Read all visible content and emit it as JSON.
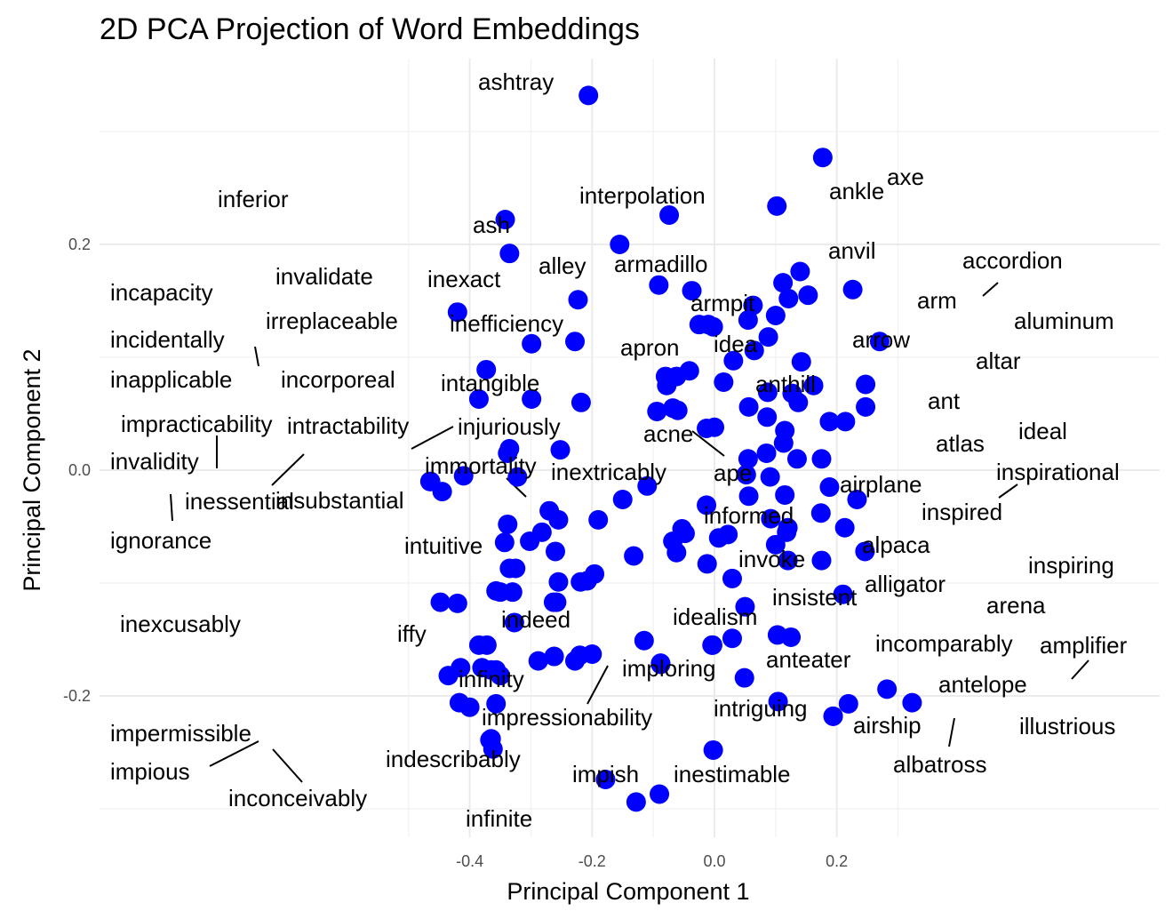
{
  "chart_data": {
    "type": "scatter",
    "title": "2D PCA Projection of Word Embeddings",
    "xlabel": "Principal Component 1",
    "ylabel": "Principal Component 2",
    "xlim": [
      -0.495,
      0.36
    ],
    "ylim": [
      -0.325,
      0.365
    ],
    "x_ticks": [
      -0.4,
      -0.2,
      0.0,
      0.2
    ],
    "x_tick_labels": [
      "-0.4",
      "-0.2",
      "0.0",
      "0.2"
    ],
    "y_ticks": [
      -0.2,
      0.0,
      0.2
    ],
    "y_tick_labels": [
      "-0.2",
      "0.0",
      "0.2"
    ],
    "grid": true,
    "point_color": "#0000ff",
    "labeled_points": [
      {
        "label": "ashtray",
        "x": -0.206,
        "y": 0.332
      },
      {
        "label": "axe",
        "x": 0.177,
        "y": 0.277
      },
      {
        "label": "ankle",
        "x": 0.102,
        "y": 0.234
      },
      {
        "label": "interpolation",
        "x": -0.074,
        "y": 0.226
      },
      {
        "label": "inferior",
        "x": -0.342,
        "y": 0.222
      },
      {
        "label": "ash",
        "x": -0.155,
        "y": 0.2
      },
      {
        "label": "invalidate",
        "x": -0.335,
        "y": 0.192
      },
      {
        "label": "anvil",
        "x": 0.14,
        "y": 0.176
      },
      {
        "label": "accordion",
        "x": 0.226,
        "y": 0.16
      },
      {
        "label": "alley",
        "x": -0.091,
        "y": 0.164
      },
      {
        "label": "armadillo",
        "x": -0.037,
        "y": 0.159
      },
      {
        "label": "arm",
        "x": 0.153,
        "y": 0.155
      },
      {
        "label": "inexact",
        "x": -0.223,
        "y": 0.151
      },
      {
        "label": "incapacity",
        "x": -0.42,
        "y": 0.14
      },
      {
        "label": "armpit",
        "x": 0.063,
        "y": 0.146
      },
      {
        "label": "irreplaceable",
        "x": -0.299,
        "y": 0.112
      },
      {
        "label": "inefficiency",
        "x": -0.228,
        "y": 0.114
      },
      {
        "label": "aluminum",
        "x": 0.27,
        "y": 0.114
      },
      {
        "label": "incidentally",
        "x": -0.373,
        "y": 0.089
      },
      {
        "label": "idea",
        "x": 0.031,
        "y": 0.097
      },
      {
        "label": "arrow",
        "x": 0.142,
        "y": 0.096
      },
      {
        "label": "apron",
        "x": -0.041,
        "y": 0.088
      },
      {
        "label": "altar",
        "x": 0.247,
        "y": 0.076
      },
      {
        "label": "inapplicable",
        "x": -0.385,
        "y": 0.063
      },
      {
        "label": "incorporeal",
        "x": -0.299,
        "y": 0.063
      },
      {
        "label": "anthill",
        "x": 0.087,
        "y": 0.069
      },
      {
        "label": "intangible",
        "x": -0.218,
        "y": 0.06
      },
      {
        "label": "ideal",
        "x": 0.247,
        "y": 0.056
      },
      {
        "label": "ant",
        "x": 0.214,
        "y": 0.043
      },
      {
        "label": "acne",
        "x": -0.013,
        "y": 0.037
      },
      {
        "label": "impracticability",
        "x": -0.41,
        "y": -0.005
      },
      {
        "label": "intractability",
        "x": -0.335,
        "y": 0.019
      },
      {
        "label": "injuriously",
        "x": -0.252,
        "y": 0.018
      },
      {
        "label": "atlas",
        "x": 0.175,
        "y": 0.01
      },
      {
        "label": "ape",
        "x": 0.0,
        "y": 0.038
      },
      {
        "label": "invalidity",
        "x": -0.464,
        "y": -0.01
      },
      {
        "label": "inessential",
        "x": -0.338,
        "y": 0.015
      },
      {
        "label": "insubstantial",
        "x": -0.322,
        "y": -0.006
      },
      {
        "label": "immortality",
        "x": -0.15,
        "y": -0.026
      },
      {
        "label": "inextricably",
        "x": -0.11,
        "y": -0.014
      },
      {
        "label": "inspirational",
        "x": 0.233,
        "y": -0.026
      },
      {
        "label": "airplane",
        "x": 0.188,
        "y": -0.015
      },
      {
        "label": "ignorance",
        "x": -0.445,
        "y": -0.019
      },
      {
        "label": "informed",
        "x": -0.013,
        "y": -0.031
      },
      {
        "label": "inspired",
        "x": 0.213,
        "y": -0.051
      },
      {
        "label": "alpaca",
        "x": 0.118,
        "y": -0.055
      },
      {
        "label": "intuitive",
        "x": -0.26,
        "y": -0.072
      },
      {
        "label": "invoke",
        "x": 0.029,
        "y": -0.096
      },
      {
        "label": "inspiring",
        "x": 0.246,
        "y": -0.072
      },
      {
        "label": "alligator",
        "x": 0.175,
        "y": -0.08
      },
      {
        "label": "arena",
        "x": 0.21,
        "y": -0.11
      },
      {
        "label": "insistent",
        "x": 0.05,
        "y": -0.121
      },
      {
        "label": "inexcusably",
        "x": -0.448,
        "y": -0.117
      },
      {
        "label": "idealism",
        "x": -0.003,
        "y": -0.155
      },
      {
        "label": "indeed",
        "x": -0.115,
        "y": -0.151
      },
      {
        "label": "iffy",
        "x": -0.262,
        "y": -0.165
      },
      {
        "label": "incomparably",
        "x": 0.125,
        "y": -0.148
      },
      {
        "label": "amplifier",
        "x": 0.282,
        "y": -0.194
      },
      {
        "label": "anteater",
        "x": 0.049,
        "y": -0.184
      },
      {
        "label": "imploring",
        "x": -0.088,
        "y": -0.171
      },
      {
        "label": "infinity",
        "x": -0.2,
        "y": -0.163
      },
      {
        "label": "antelope",
        "x": 0.219,
        "y": -0.207
      },
      {
        "label": "intriguing",
        "x": 0.104,
        "y": -0.205
      },
      {
        "label": "illustrious",
        "x": 0.323,
        "y": -0.206
      },
      {
        "label": "impressionability",
        "x": -0.088,
        "y": -0.172
      },
      {
        "label": "airship",
        "x": 0.194,
        "y": -0.218
      },
      {
        "label": "impermissible",
        "x": -0.365,
        "y": -0.238
      },
      {
        "label": "impious",
        "x": -0.367,
        "y": -0.239
      },
      {
        "label": "inconceivably",
        "x": -0.362,
        "y": -0.247
      },
      {
        "label": "albatross",
        "x": 0.194,
        "y": -0.218
      },
      {
        "label": "inestimable",
        "x": -0.002,
        "y": -0.248
      },
      {
        "label": "indescribably",
        "x": -0.178,
        "y": -0.274
      },
      {
        "label": "impish",
        "x": -0.09,
        "y": -0.287
      },
      {
        "label": "infinite",
        "x": -0.128,
        "y": -0.294
      }
    ],
    "unlabeled_points": [
      [
        -0.465,
        -0.01
      ],
      [
        -0.42,
        -0.118
      ],
      [
        -0.385,
        -0.155
      ],
      [
        -0.372,
        -0.155
      ],
      [
        -0.38,
        -0.175
      ],
      [
        -0.415,
        -0.175
      ],
      [
        -0.435,
        -0.182
      ],
      [
        -0.417,
        -0.206
      ],
      [
        -0.4,
        -0.21
      ],
      [
        -0.365,
        -0.177
      ],
      [
        -0.35,
        -0.182
      ],
      [
        -0.357,
        -0.207
      ],
      [
        -0.357,
        -0.177
      ],
      [
        -0.35,
        -0.108
      ],
      [
        -0.33,
        -0.108
      ],
      [
        -0.357,
        -0.107
      ],
      [
        -0.335,
        -0.087
      ],
      [
        -0.325,
        -0.087
      ],
      [
        -0.327,
        -0.135
      ],
      [
        -0.343,
        -0.064
      ],
      [
        -0.338,
        -0.048
      ],
      [
        -0.302,
        -0.063
      ],
      [
        -0.27,
        -0.036
      ],
      [
        -0.282,
        -0.055
      ],
      [
        -0.255,
        -0.044
      ],
      [
        -0.255,
        -0.099
      ],
      [
        -0.263,
        -0.117
      ],
      [
        -0.288,
        -0.169
      ],
      [
        -0.258,
        -0.117
      ],
      [
        -0.228,
        -0.169
      ],
      [
        -0.22,
        -0.164
      ],
      [
        -0.219,
        -0.099
      ],
      [
        -0.208,
        -0.098
      ],
      [
        -0.196,
        -0.092
      ],
      [
        -0.19,
        -0.044
      ],
      [
        -0.132,
        -0.076
      ],
      [
        -0.094,
        0.052
      ],
      [
        -0.08,
        0.083
      ],
      [
        -0.078,
        0.075
      ],
      [
        -0.068,
        0.055
      ],
      [
        -0.06,
        0.053
      ],
      [
        -0.062,
        0.083
      ],
      [
        -0.068,
        -0.063
      ],
      [
        -0.062,
        -0.073
      ],
      [
        -0.053,
        -0.052
      ],
      [
        -0.048,
        -0.056
      ],
      [
        -0.025,
        0.129
      ],
      [
        -0.01,
        0.129
      ],
      [
        -0.002,
        0.127
      ],
      [
        0.015,
        0.078
      ],
      [
        -0.012,
        -0.083
      ],
      [
        0.007,
        -0.06
      ],
      [
        0.022,
        -0.057
      ],
      [
        0.055,
        0.133
      ],
      [
        0.065,
        0.106
      ],
      [
        0.088,
        0.118
      ],
      [
        0.1,
        0.137
      ],
      [
        0.112,
        0.166
      ],
      [
        0.121,
        0.152
      ],
      [
        0.056,
        0.056
      ],
      [
        0.086,
        0.047
      ],
      [
        0.115,
        0.035
      ],
      [
        0.127,
        0.068
      ],
      [
        0.137,
        0.06
      ],
      [
        0.162,
        0.075
      ],
      [
        0.188,
        0.043
      ],
      [
        0.113,
        0.024
      ],
      [
        0.085,
        0.015
      ],
      [
        0.135,
        0.01
      ],
      [
        0.055,
        0.01
      ],
      [
        0.052,
        -0.004
      ],
      [
        0.056,
        -0.023
      ],
      [
        0.091,
        -0.006
      ],
      [
        0.115,
        -0.022
      ],
      [
        0.092,
        -0.043
      ],
      [
        0.1,
        -0.066
      ],
      [
        0.12,
        -0.051
      ],
      [
        0.174,
        -0.038
      ],
      [
        0.12,
        -0.08
      ],
      [
        0.103,
        -0.146
      ],
      [
        0.029,
        -0.149
      ],
      [
        -0.004,
        -0.155
      ]
    ]
  }
}
